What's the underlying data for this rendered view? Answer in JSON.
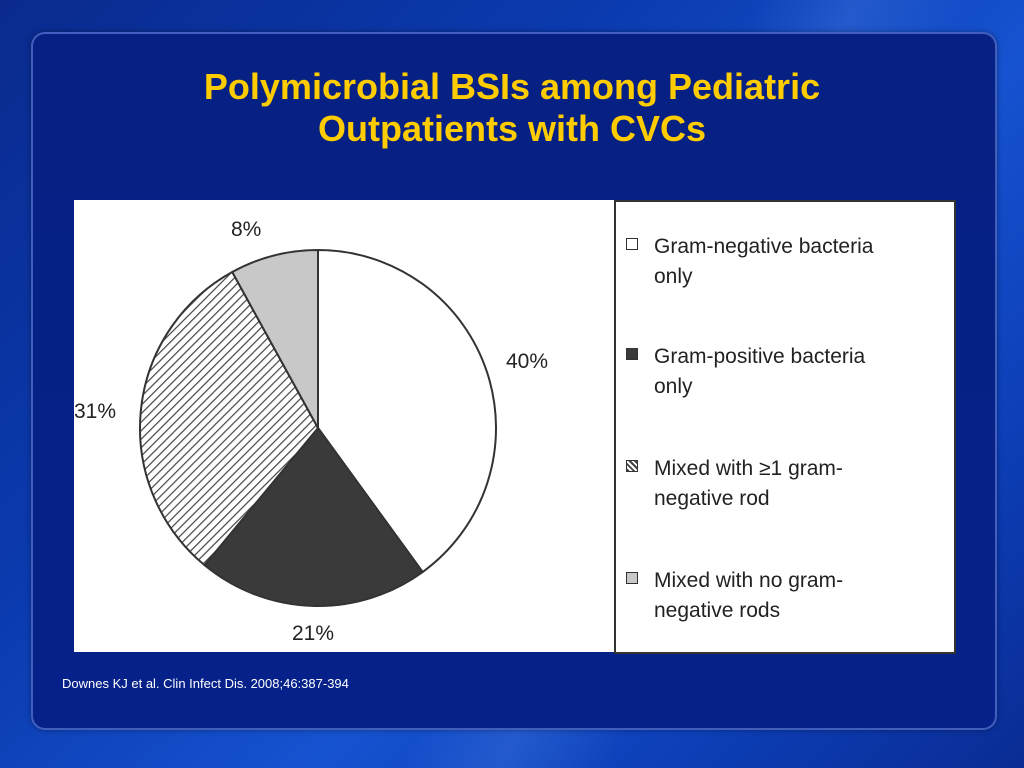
{
  "slide": {
    "title_line1": "Polymicrobial BSIs among Pediatric",
    "title_line2": "Outpatients with CVCs",
    "citation": "Downes KJ et al. Clin Infect Dis. 2008;46:387-394",
    "colors": {
      "title": "#ffcc00",
      "background": "#0b3bb0",
      "panel": "#06228a"
    }
  },
  "chart_data": {
    "type": "pie",
    "categories": [
      "Gram-negative bacteria only",
      "Gram-positive bacteria only",
      "Mixed with ≥1 gram-negative rod",
      "Mixed with no gram-negative rods"
    ],
    "values": [
      40,
      21,
      31,
      8
    ],
    "labels": [
      "40%",
      "21%",
      "31%",
      "8%"
    ],
    "fills": [
      "#ffffff",
      "#3a3a3a",
      "hatch",
      "#c8c8c8"
    ],
    "legend_position": "right",
    "legend": [
      {
        "line1": "Gram-negative bacteria",
        "line2": "only",
        "fill": "#ffffff"
      },
      {
        "line1": "Gram-positive bacteria",
        "line2": "only",
        "fill": "#3a3a3a"
      },
      {
        "line1": "Mixed with ≥1 gram-",
        "line2": "negative rod",
        "fill": "hatch"
      },
      {
        "line1": "Mixed with no gram-",
        "line2": "negative rods",
        "fill": "#c8c8c8"
      }
    ]
  }
}
